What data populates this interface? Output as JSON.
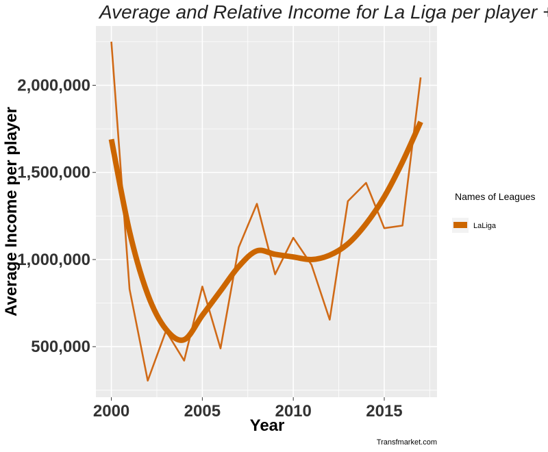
{
  "chart_data": {
    "type": "line",
    "title": "Average and Relative  Income for La Liga  per player + r",
    "xlabel": "Year",
    "ylabel": "Average Income  per player",
    "caption": "Transfmarket.com",
    "xlim": [
      1999.15,
      2017.9
    ],
    "ylim": [
      210000,
      2340000
    ],
    "x_ticks": [
      2000,
      2005,
      2010,
      2015
    ],
    "x_tick_labels": [
      "2000",
      "2005",
      "2010",
      "2015"
    ],
    "y_ticks": [
      500000,
      1000000,
      1500000,
      2000000
    ],
    "y_tick_labels": [
      "500,000",
      "1,000,000",
      "1,500,000",
      "2,000,000"
    ],
    "grid": true,
    "legend": {
      "title": "Names of Leagues",
      "position": "right",
      "entries": [
        "LaLiga"
      ]
    },
    "series": [
      {
        "name": "LaLiga",
        "kind": "raw",
        "color": "#d06a17",
        "x": [
          2000,
          2001,
          2002,
          2003,
          2004,
          2005,
          2006,
          2007,
          2008,
          2009,
          2010,
          2011,
          2012,
          2013,
          2014,
          2015,
          2016,
          2017
        ],
        "y": [
          2250000,
          830000,
          305000,
          590000,
          420000,
          845000,
          490000,
          1070000,
          1320000,
          915000,
          1125000,
          970000,
          655000,
          1335000,
          1440000,
          1180000,
          1195000,
          2045000
        ]
      },
      {
        "name": "LaLiga",
        "kind": "smooth",
        "color": "#cc6600",
        "x": [
          2000,
          2001,
          2002,
          2003,
          2004,
          2005,
          2006,
          2007,
          2008,
          2009,
          2010,
          2011,
          2012,
          2013,
          2014,
          2015,
          2016,
          2017
        ],
        "y": [
          1690000,
          1160000,
          800000,
          600000,
          540000,
          680000,
          820000,
          960000,
          1050000,
          1030000,
          1015000,
          1000000,
          1025000,
          1090000,
          1205000,
          1360000,
          1560000,
          1790000
        ]
      }
    ]
  },
  "colors": {
    "panel_bg": "#ebebeb",
    "grid": "#ffffff",
    "legend_key_bg": "#f2f2f2"
  }
}
